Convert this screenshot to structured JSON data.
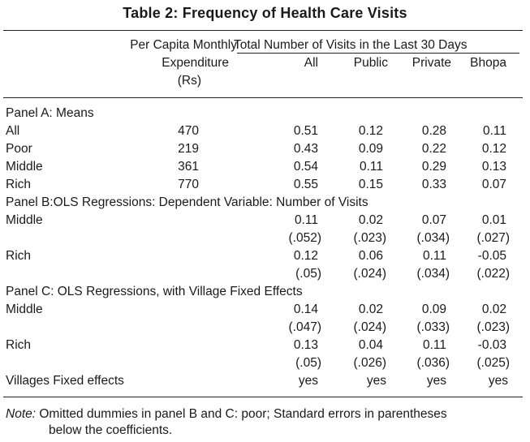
{
  "title": "Table 2: Frequency of Health Care Visits",
  "header": {
    "exp_line1": "Per Capita Monthly",
    "exp_line2": "Expenditure",
    "exp_line3": "(Rs)",
    "visits_group": "Total Number of Visits in the Last 30 Days",
    "col_all": "All",
    "col_public": "Public",
    "col_private": "Private",
    "col_bhopa": "Bhopa"
  },
  "panelA": {
    "heading": "Panel A: Means",
    "rows": [
      {
        "label": "All",
        "exp": "470",
        "all": "0.51",
        "public": "0.12",
        "private": "0.28",
        "bhopa": "0.11"
      },
      {
        "label": "Poor",
        "exp": "219",
        "all": "0.43",
        "public": "0.09",
        "private": "0.22",
        "bhopa": "0.12"
      },
      {
        "label": "Middle",
        "exp": "361",
        "all": "0.54",
        "public": "0.11",
        "private": "0.29",
        "bhopa": "0.13"
      },
      {
        "label": "Rich",
        "exp": "770",
        "all": "0.55",
        "public": "0.15",
        "private": "0.33",
        "bhopa": "0.07"
      }
    ]
  },
  "panelB": {
    "heading": "Panel B:OLS Regressions: Dependent Variable: Number of Visits",
    "rows": [
      {
        "label": "Middle",
        "all": "0.11",
        "public": "0.02",
        "private": "0.07",
        "bhopa": "0.01"
      },
      {
        "label": "",
        "all": "(.052)",
        "public": "(.023)",
        "private": "(.034)",
        "bhopa": "(.027)"
      },
      {
        "label": "Rich",
        "all": "0.12",
        "public": "0.06",
        "private": "0.11",
        "bhopa": "-0.05"
      },
      {
        "label": "",
        "all": "(.05)",
        "public": "(.024)",
        "private": "(.034)",
        "bhopa": "(.022)"
      }
    ]
  },
  "panelC": {
    "heading": "Panel C: OLS Regressions, with Village Fixed Effects",
    "rows": [
      {
        "label": "Middle",
        "all": "0.14",
        "public": "0.02",
        "private": "0.09",
        "bhopa": "0.02"
      },
      {
        "label": "",
        "all": "(.047)",
        "public": "(.024)",
        "private": "(.033)",
        "bhopa": "(.023)"
      },
      {
        "label": "Rich",
        "all": "0.13",
        "public": "0.04",
        "private": "0.11",
        "bhopa": "-0.03"
      },
      {
        "label": "",
        "all": "(.05)",
        "public": "(.026)",
        "private": "(.036)",
        "bhopa": "(.025)"
      },
      {
        "label": "Villages Fixed effects",
        "all": "yes",
        "public": "yes",
        "private": "yes",
        "bhopa": "yes"
      }
    ]
  },
  "note": {
    "label": "Note:",
    "line1": "Omitted dummies in panel B and C: poor; Standard errors in parentheses",
    "line2": "below the coefficients."
  }
}
